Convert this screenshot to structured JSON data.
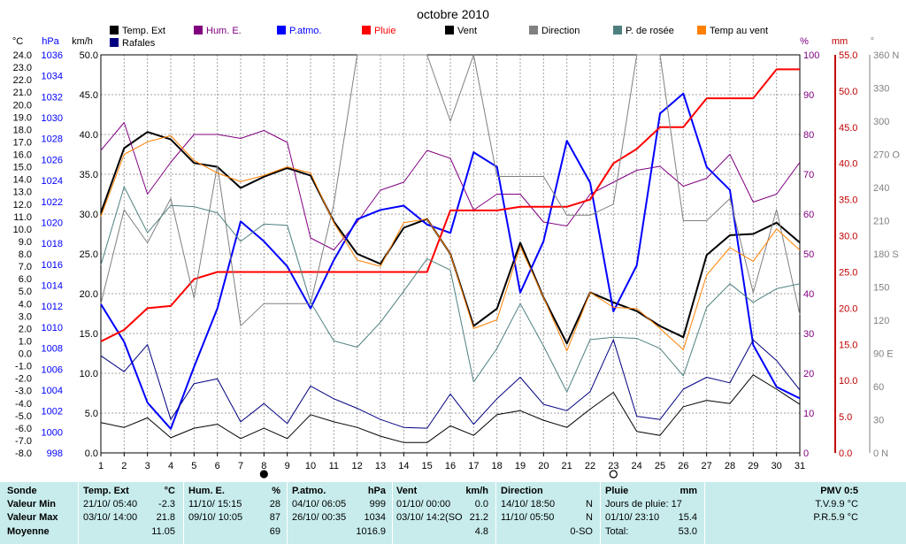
{
  "chart_data": {
    "type": "line",
    "title": "octobre 2010",
    "x": [
      1,
      2,
      3,
      4,
      5,
      6,
      7,
      8,
      9,
      10,
      11,
      12,
      13,
      14,
      15,
      16,
      17,
      18,
      19,
      20,
      21,
      22,
      23,
      24,
      25,
      26,
      27,
      28,
      29,
      30,
      31
    ],
    "axes": {
      "temp": {
        "unit": "°C",
        "range": [
          -8.0,
          24.0
        ],
        "ticks": [
          "24.0",
          "23.0",
          "22.0",
          "21.0",
          "20.0",
          "19.0",
          "18.0",
          "17.0",
          "16.0",
          "15.0",
          "14.0",
          "13.0",
          "12.0",
          "11.0",
          "10.0",
          "9.0",
          "8.0",
          "7.0",
          "6.0",
          "5.0",
          "4.0",
          "3.0",
          "2.0",
          "1.0",
          "0.0",
          "-1.0",
          "-2.0",
          "-3.0",
          "-4.0",
          "-5.0",
          "-6.0",
          "-7.0",
          "-8.0"
        ]
      },
      "pressure": {
        "unit": "hPa",
        "range": [
          998,
          1036
        ],
        "ticks": [
          "1036",
          "1034",
          "1032",
          "1030",
          "1028",
          "1026",
          "1024",
          "1022",
          "1020",
          "1018",
          "1016",
          "1014",
          "1012",
          "1010",
          "1008",
          "1006",
          "1004",
          "1002",
          "1000",
          "998"
        ]
      },
      "wind": {
        "unit": "km/h",
        "range": [
          0,
          50
        ],
        "ticks": [
          "50.0",
          "45.0",
          "40.0",
          "35.0",
          "30.0",
          "25.0",
          "20.0",
          "15.0",
          "10.0",
          "5.0",
          "0.0"
        ]
      },
      "humidity": {
        "unit": "%",
        "range": [
          0,
          100
        ],
        "ticks": [
          "100",
          "90",
          "80",
          "70",
          "60",
          "50",
          "40",
          "30",
          "20",
          "10",
          "0"
        ]
      },
      "rain": {
        "unit": "mm",
        "range": [
          0,
          55
        ],
        "ticks": [
          "55.0",
          "50.0",
          "45.0",
          "40.0",
          "35.0",
          "30.0",
          "25.0",
          "20.0",
          "15.0",
          "10.0",
          "5.0",
          "0.0"
        ]
      },
      "direction": {
        "unit": "°",
        "range": [
          0,
          360
        ],
        "ticks": [
          "360 N",
          "330",
          "300",
          "270 O",
          "240",
          "210",
          "180 S",
          "150",
          "120",
          "90 E",
          "60",
          "30",
          "0 N"
        ]
      }
    },
    "series": [
      {
        "name": "Temp. Ext",
        "color": "#000000",
        "axis": "temp",
        "values": [
          11.3,
          16.5,
          17.8,
          17.2,
          15.3,
          15.0,
          13.3,
          14.2,
          14.9,
          14.3,
          10.6,
          8.0,
          7.2,
          10.1,
          10.8,
          8.0,
          2.2,
          3.6,
          8.9,
          4.5,
          0.8,
          4.9,
          4.1,
          3.4,
          2.2,
          1.3,
          7.9,
          9.5,
          9.6,
          10.5,
          8.9
        ]
      },
      {
        "name": "Hum. E.",
        "color": "#800080",
        "axis": "humidity",
        "values": [
          76,
          83,
          65,
          73,
          80,
          80,
          79,
          81,
          78,
          54,
          51,
          58,
          66,
          68,
          76,
          74,
          61,
          65,
          65,
          58,
          57,
          65,
          68,
          71,
          72,
          67,
          69,
          75,
          63,
          65,
          73
        ]
      },
      {
        "name": "P.atmo.",
        "color": "#0000ff",
        "axis": "pressure",
        "values": [
          1012.2,
          1008.6,
          1002.8,
          1000.3,
          1006.2,
          1011.8,
          1020.1,
          1018.2,
          1015.8,
          1011.8,
          1016.4,
          1020.3,
          1021.2,
          1021.6,
          1019.8,
          1019.0,
          1026.7,
          1025.3,
          1013.3,
          1018.2,
          1027.8,
          1023.8,
          1011.5,
          1015.9,
          1030.4,
          1032.3,
          1025.3,
          1023.1,
          1008.3,
          1004.3,
          1003.2
        ]
      },
      {
        "name": "Pluie",
        "color": "#ff0000",
        "axis": "rain",
        "values": [
          15.4,
          17.0,
          20.0,
          20.3,
          24.0,
          25.0,
          25.0,
          25.0,
          25.0,
          25.0,
          25.0,
          25.0,
          25.0,
          25.0,
          25.0,
          33.5,
          33.5,
          33.5,
          34.0,
          34.0,
          34.0,
          35.0,
          40.0,
          42.0,
          45.0,
          45.0,
          49.0,
          49.0,
          49.0,
          53.0,
          53.0
        ]
      },
      {
        "name": "Vent",
        "color": "#000000",
        "axis": "wind",
        "values": [
          3.8,
          3.2,
          4.4,
          1.9,
          3.1,
          3.6,
          1.8,
          3.1,
          1.8,
          4.8,
          3.9,
          3.2,
          2.1,
          1.3,
          1.3,
          3.4,
          2.2,
          4.8,
          5.3,
          4.1,
          3.2,
          5.5,
          7.6,
          2.7,
          2.2,
          5.8,
          6.6,
          6.2,
          9.8,
          8.0,
          6.1
        ]
      },
      {
        "name": "Direction",
        "color": "#808080",
        "axis": "direction",
        "values": [
          135,
          220,
          190,
          230,
          140,
          260,
          115,
          135,
          135,
          135,
          225,
          360,
          360,
          360,
          360,
          300,
          360,
          250,
          250,
          250,
          215,
          215,
          225,
          360,
          360,
          210,
          210,
          230,
          145,
          220,
          125
        ]
      },
      {
        "name": "P. de rosée",
        "color": "#4f8080",
        "axis": "temp",
        "values": [
          7.1,
          13.4,
          9.7,
          11.9,
          11.8,
          11.3,
          9.0,
          10.4,
          10.3,
          4.1,
          1.0,
          0.5,
          2.5,
          5.0,
          7.6,
          6.7,
          -2.3,
          0.4,
          4.0,
          0.6,
          -3.1,
          1.1,
          1.3,
          1.2,
          0.4,
          -1.8,
          3.7,
          5.6,
          4.1,
          5.2,
          5.6
        ]
      },
      {
        "name": "Temp au vent",
        "color": "#ff8000",
        "axis": "temp",
        "values": [
          11.0,
          16.0,
          17.0,
          17.5,
          15.5,
          14.5,
          13.8,
          14.3,
          15.0,
          14.5,
          10.5,
          7.5,
          7.0,
          10.5,
          10.8,
          8.0,
          2.0,
          2.7,
          8.6,
          4.5,
          0.2,
          4.9,
          3.7,
          3.6,
          2.0,
          0.3,
          6.3,
          8.5,
          7.4,
          10.0,
          8.3
        ]
      },
      {
        "name": "Rafales",
        "color": "#000080",
        "axis": "wind",
        "values": [
          12.2,
          10.2,
          13.6,
          4.2,
          8.7,
          9.3,
          3.9,
          6.2,
          3.7,
          8.4,
          6.8,
          5.6,
          4.2,
          3.2,
          3.1,
          7.4,
          3.6,
          6.8,
          9.5,
          6.1,
          5.3,
          7.7,
          14.2,
          4.6,
          4.2,
          8.0,
          9.5,
          8.8,
          14.2,
          11.6,
          7.9
        ]
      }
    ],
    "markers": [
      {
        "day": 8,
        "symbol": "new-moon"
      },
      {
        "day": 23,
        "symbol": "full-moon"
      }
    ],
    "grid": true
  },
  "stats": {
    "sonde": {
      "header": "Sonde",
      "rows": [
        "Valeur Min",
        "Valeur Max",
        "Moyenne"
      ]
    },
    "temp": {
      "header": "Temp. Ext",
      "unit": "°C",
      "min_time": "21/10/ 05:40",
      "min_val": "-2.3",
      "max_time": "03/10/ 14:00",
      "max_val": "21.8",
      "avg": "11.05"
    },
    "hum": {
      "header": "Hum. E.",
      "unit": "%",
      "min_time": "11/10/ 15:15",
      "min_val": "28",
      "max_time": "09/10/ 10:05",
      "max_val": "87",
      "avg": "69"
    },
    "patmo": {
      "header": "P.atmo.",
      "unit": "hPa",
      "min_time": "04/10/ 06:05",
      "min_val": "999",
      "max_time": "26/10/ 00:35",
      "max_val": "1034",
      "avg": "1016.9"
    },
    "vent": {
      "header": "Vent",
      "unit": "km/h",
      "min_time": "01/10/ 00:00",
      "min_val": "0.0",
      "max_time": "03/10/ 14:2(SO",
      "max_val": "21.2",
      "avg": "4.8"
    },
    "direction": {
      "header": "Direction",
      "min_time": "14/10/ 18:50",
      "min_val": "N",
      "max_time": "11/10/ 05:50",
      "max_val": "N",
      "avg": "0-SO"
    },
    "pluie": {
      "header": "Pluie",
      "unit": "mm",
      "rain_days": "Jours de pluie: 17",
      "max_time": "01/10/ 23:10",
      "max_val": "15.4",
      "total_label": "Total:",
      "total_val": "53.0"
    },
    "pmv": {
      "header": "PMV 0:5",
      "tv": "T.V.9.9 °C",
      "pr": "P.R.5.9 °C"
    }
  }
}
